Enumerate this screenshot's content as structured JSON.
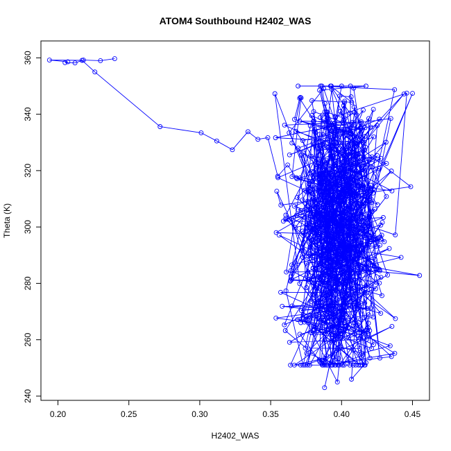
{
  "chart_data": {
    "type": "line",
    "title": "ATOM4 Southbound H2402_WAS",
    "xlabel": "H2402_WAS",
    "ylabel": "Theta (K)",
    "xlim": [
      0.188,
      0.462
    ],
    "ylim": [
      238.5,
      366
    ],
    "x_ticks": [
      0.2,
      0.25,
      0.3,
      0.35,
      0.4,
      0.45
    ],
    "x_tick_labels": [
      "0.20",
      "0.25",
      "0.30",
      "0.35",
      "0.40",
      "0.45"
    ],
    "y_ticks": [
      240,
      260,
      280,
      300,
      320,
      340,
      360
    ],
    "y_tick_labels": [
      "240",
      "260",
      "280",
      "300",
      "320",
      "340",
      "360"
    ],
    "grid": false,
    "marker": "open-circle",
    "color": "#0000ff",
    "series_outlier_path": {
      "x": [
        0.24,
        0.23,
        0.218,
        0.212,
        0.205,
        0.207,
        0.194,
        0.217,
        0.226,
        0.272,
        0.301,
        0.312,
        0.323,
        0.334,
        0.341,
        0.348,
        0.355,
        0.362,
        0.368
      ],
      "y": [
        359.7,
        359.0,
        359.2,
        358.2,
        358.3,
        358.6,
        359.2,
        359.1,
        355.0,
        335.6,
        333.4,
        330.5,
        327.4,
        333.8,
        331.1,
        331.7,
        318.0,
        322.0,
        317.5
      ]
    },
    "series_cloud": {
      "seed": 20240402,
      "n": 820,
      "x_center": 0.397,
      "x_sd": 0.017,
      "x_range": [
        0.352,
        0.455
      ],
      "y_range": [
        243,
        350
      ],
      "y_density_segments": [
        {
          "y": [
            243,
            262
          ],
          "weight": 0.05
        },
        {
          "y": [
            262,
            280
          ],
          "weight": 0.15
        },
        {
          "y": [
            280,
            300
          ],
          "weight": 0.28
        },
        {
          "y": [
            300,
            320
          ],
          "weight": 0.3
        },
        {
          "y": [
            320,
            340
          ],
          "weight": 0.19
        },
        {
          "y": [
            340,
            350
          ],
          "weight": 0.03
        }
      ]
    },
    "series_notable_points": {
      "x": [
        0.388,
        0.397,
        0.407,
        0.394,
        0.42,
        0.427,
        0.41,
        0.455,
        0.438,
        0.353,
        0.446,
        0.45,
        0.444
      ],
      "y": [
        243.0,
        245.0,
        246.0,
        254.0,
        253.5,
        253.5,
        265.0,
        282.8,
        267.5,
        347.3,
        347.5,
        347.4,
        347.2
      ]
    }
  }
}
